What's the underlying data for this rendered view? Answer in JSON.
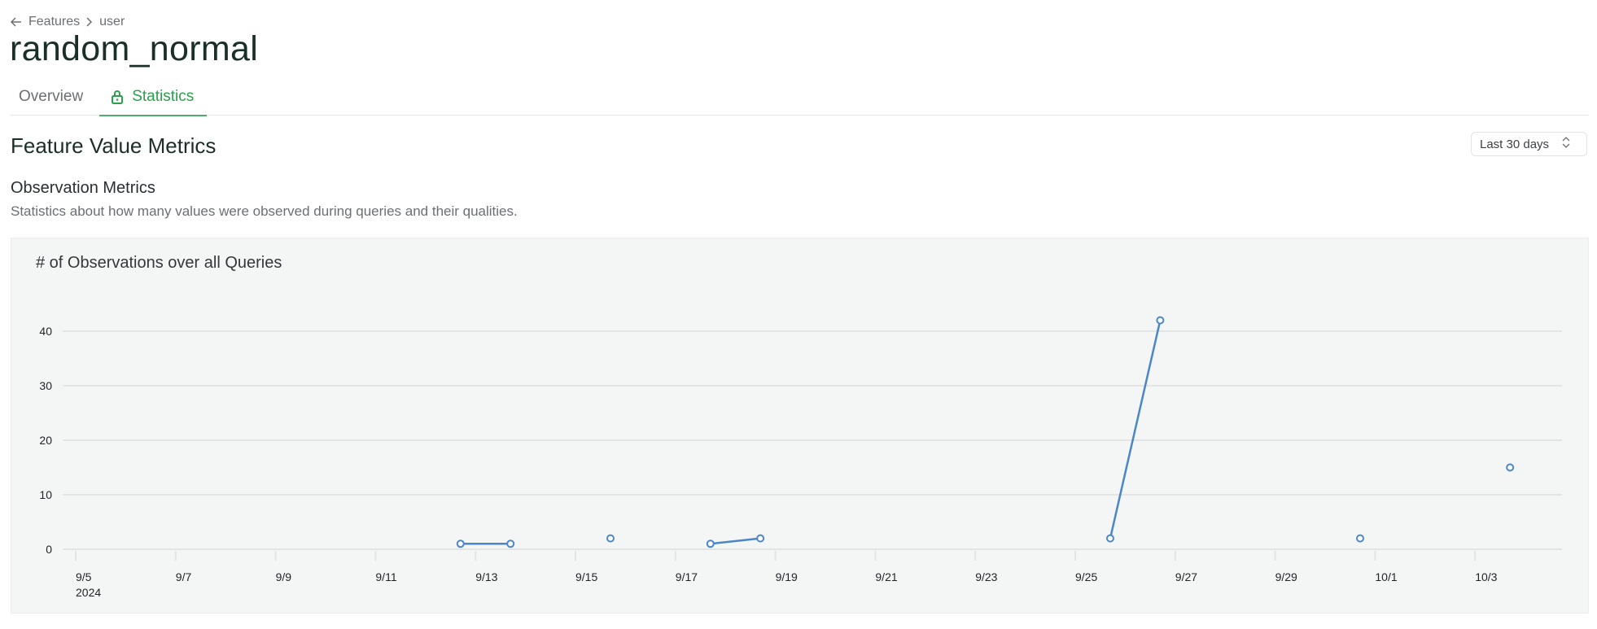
{
  "breadcrumb": {
    "back_icon": "arrow-left-icon",
    "items": [
      "Features",
      "user"
    ],
    "separator_icon": "chevron-right-icon"
  },
  "page": {
    "title": "random_normal"
  },
  "tabs": [
    {
      "label": "Overview",
      "active": false
    },
    {
      "label": "Statistics",
      "active": true,
      "icon": "lock-icon"
    }
  ],
  "section": {
    "title": "Feature Value Metrics",
    "range_select": {
      "value": "Last 30 days",
      "icon": "chevron-up-down-icon"
    }
  },
  "subsection": {
    "title": "Observation Metrics",
    "description": "Statistics about how many values were observed during queries and their qualities."
  },
  "colors": {
    "accent": "#2aa04c",
    "series": "#4a86c8"
  },
  "chart_data": {
    "type": "line",
    "title": "# of Observations over all Queries",
    "xlabel": "",
    "ylabel": "",
    "x_ticks": [
      "9/5",
      "9/7",
      "9/9",
      "9/11",
      "9/13",
      "9/15",
      "9/17",
      "9/19",
      "9/21",
      "9/23",
      "9/25",
      "9/27",
      "9/29",
      "10/1",
      "10/3"
    ],
    "x_year_label": "2024",
    "x_range": [
      "2024-09-05",
      "2024-10-04"
    ],
    "y_ticks": [
      0,
      10,
      20,
      30,
      40
    ],
    "ylim": [
      0,
      42
    ],
    "grid": "horizontal",
    "segments": [
      [
        {
          "x": "2024-09-12",
          "y": 1
        },
        {
          "x": "2024-09-13",
          "y": 1
        }
      ],
      [
        {
          "x": "2024-09-15",
          "y": 2
        }
      ],
      [
        {
          "x": "2024-09-17",
          "y": 1
        },
        {
          "x": "2024-09-18",
          "y": 2
        }
      ],
      [
        {
          "x": "2024-09-25",
          "y": 2
        },
        {
          "x": "2024-09-26",
          "y": 42
        }
      ],
      [
        {
          "x": "2024-09-30",
          "y": 2
        }
      ],
      [
        {
          "x": "2024-10-03",
          "y": 15
        }
      ]
    ]
  }
}
